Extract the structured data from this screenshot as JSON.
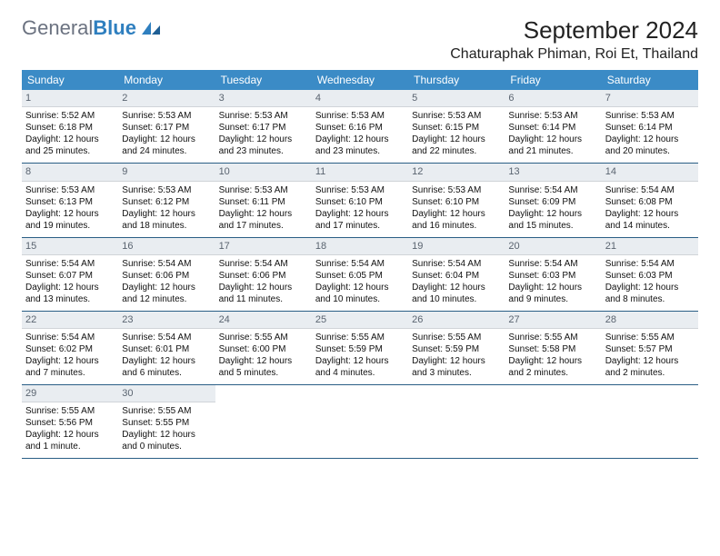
{
  "logo": {
    "text1": "General",
    "text2": "Blue"
  },
  "title": "September 2024",
  "location": "Chaturaphak Phiman, Roi Et, Thailand",
  "colors": {
    "header_bg": "#3b8bc6",
    "header_text": "#ffffff",
    "daynum_bg": "#e9edf1",
    "daynum_text": "#5a6470",
    "week_border": "#2a5e85",
    "logo_gray": "#6b7280",
    "logo_blue": "#2f7fbf",
    "body_text": "#111111",
    "page_bg": "#ffffff"
  },
  "typography": {
    "title_fontsize": 26,
    "location_fontsize": 16,
    "dayhead_fontsize": 12,
    "daynum_fontsize": 11,
    "cell_fontsize": 10
  },
  "day_names": [
    "Sunday",
    "Monday",
    "Tuesday",
    "Wednesday",
    "Thursday",
    "Friday",
    "Saturday"
  ],
  "weeks": [
    [
      {
        "n": "1",
        "sunrise": "Sunrise: 5:52 AM",
        "sunset": "Sunset: 6:18 PM",
        "daylight": "Daylight: 12 hours and 25 minutes."
      },
      {
        "n": "2",
        "sunrise": "Sunrise: 5:53 AM",
        "sunset": "Sunset: 6:17 PM",
        "daylight": "Daylight: 12 hours and 24 minutes."
      },
      {
        "n": "3",
        "sunrise": "Sunrise: 5:53 AM",
        "sunset": "Sunset: 6:17 PM",
        "daylight": "Daylight: 12 hours and 23 minutes."
      },
      {
        "n": "4",
        "sunrise": "Sunrise: 5:53 AM",
        "sunset": "Sunset: 6:16 PM",
        "daylight": "Daylight: 12 hours and 23 minutes."
      },
      {
        "n": "5",
        "sunrise": "Sunrise: 5:53 AM",
        "sunset": "Sunset: 6:15 PM",
        "daylight": "Daylight: 12 hours and 22 minutes."
      },
      {
        "n": "6",
        "sunrise": "Sunrise: 5:53 AM",
        "sunset": "Sunset: 6:14 PM",
        "daylight": "Daylight: 12 hours and 21 minutes."
      },
      {
        "n": "7",
        "sunrise": "Sunrise: 5:53 AM",
        "sunset": "Sunset: 6:14 PM",
        "daylight": "Daylight: 12 hours and 20 minutes."
      }
    ],
    [
      {
        "n": "8",
        "sunrise": "Sunrise: 5:53 AM",
        "sunset": "Sunset: 6:13 PM",
        "daylight": "Daylight: 12 hours and 19 minutes."
      },
      {
        "n": "9",
        "sunrise": "Sunrise: 5:53 AM",
        "sunset": "Sunset: 6:12 PM",
        "daylight": "Daylight: 12 hours and 18 minutes."
      },
      {
        "n": "10",
        "sunrise": "Sunrise: 5:53 AM",
        "sunset": "Sunset: 6:11 PM",
        "daylight": "Daylight: 12 hours and 17 minutes."
      },
      {
        "n": "11",
        "sunrise": "Sunrise: 5:53 AM",
        "sunset": "Sunset: 6:10 PM",
        "daylight": "Daylight: 12 hours and 17 minutes."
      },
      {
        "n": "12",
        "sunrise": "Sunrise: 5:53 AM",
        "sunset": "Sunset: 6:10 PM",
        "daylight": "Daylight: 12 hours and 16 minutes."
      },
      {
        "n": "13",
        "sunrise": "Sunrise: 5:54 AM",
        "sunset": "Sunset: 6:09 PM",
        "daylight": "Daylight: 12 hours and 15 minutes."
      },
      {
        "n": "14",
        "sunrise": "Sunrise: 5:54 AM",
        "sunset": "Sunset: 6:08 PM",
        "daylight": "Daylight: 12 hours and 14 minutes."
      }
    ],
    [
      {
        "n": "15",
        "sunrise": "Sunrise: 5:54 AM",
        "sunset": "Sunset: 6:07 PM",
        "daylight": "Daylight: 12 hours and 13 minutes."
      },
      {
        "n": "16",
        "sunrise": "Sunrise: 5:54 AM",
        "sunset": "Sunset: 6:06 PM",
        "daylight": "Daylight: 12 hours and 12 minutes."
      },
      {
        "n": "17",
        "sunrise": "Sunrise: 5:54 AM",
        "sunset": "Sunset: 6:06 PM",
        "daylight": "Daylight: 12 hours and 11 minutes."
      },
      {
        "n": "18",
        "sunrise": "Sunrise: 5:54 AM",
        "sunset": "Sunset: 6:05 PM",
        "daylight": "Daylight: 12 hours and 10 minutes."
      },
      {
        "n": "19",
        "sunrise": "Sunrise: 5:54 AM",
        "sunset": "Sunset: 6:04 PM",
        "daylight": "Daylight: 12 hours and 10 minutes."
      },
      {
        "n": "20",
        "sunrise": "Sunrise: 5:54 AM",
        "sunset": "Sunset: 6:03 PM",
        "daylight": "Daylight: 12 hours and 9 minutes."
      },
      {
        "n": "21",
        "sunrise": "Sunrise: 5:54 AM",
        "sunset": "Sunset: 6:03 PM",
        "daylight": "Daylight: 12 hours and 8 minutes."
      }
    ],
    [
      {
        "n": "22",
        "sunrise": "Sunrise: 5:54 AM",
        "sunset": "Sunset: 6:02 PM",
        "daylight": "Daylight: 12 hours and 7 minutes."
      },
      {
        "n": "23",
        "sunrise": "Sunrise: 5:54 AM",
        "sunset": "Sunset: 6:01 PM",
        "daylight": "Daylight: 12 hours and 6 minutes."
      },
      {
        "n": "24",
        "sunrise": "Sunrise: 5:55 AM",
        "sunset": "Sunset: 6:00 PM",
        "daylight": "Daylight: 12 hours and 5 minutes."
      },
      {
        "n": "25",
        "sunrise": "Sunrise: 5:55 AM",
        "sunset": "Sunset: 5:59 PM",
        "daylight": "Daylight: 12 hours and 4 minutes."
      },
      {
        "n": "26",
        "sunrise": "Sunrise: 5:55 AM",
        "sunset": "Sunset: 5:59 PM",
        "daylight": "Daylight: 12 hours and 3 minutes."
      },
      {
        "n": "27",
        "sunrise": "Sunrise: 5:55 AM",
        "sunset": "Sunset: 5:58 PM",
        "daylight": "Daylight: 12 hours and 2 minutes."
      },
      {
        "n": "28",
        "sunrise": "Sunrise: 5:55 AM",
        "sunset": "Sunset: 5:57 PM",
        "daylight": "Daylight: 12 hours and 2 minutes."
      }
    ],
    [
      {
        "n": "29",
        "sunrise": "Sunrise: 5:55 AM",
        "sunset": "Sunset: 5:56 PM",
        "daylight": "Daylight: 12 hours and 1 minute."
      },
      {
        "n": "30",
        "sunrise": "Sunrise: 5:55 AM",
        "sunset": "Sunset: 5:55 PM",
        "daylight": "Daylight: 12 hours and 0 minutes."
      },
      null,
      null,
      null,
      null,
      null
    ]
  ]
}
